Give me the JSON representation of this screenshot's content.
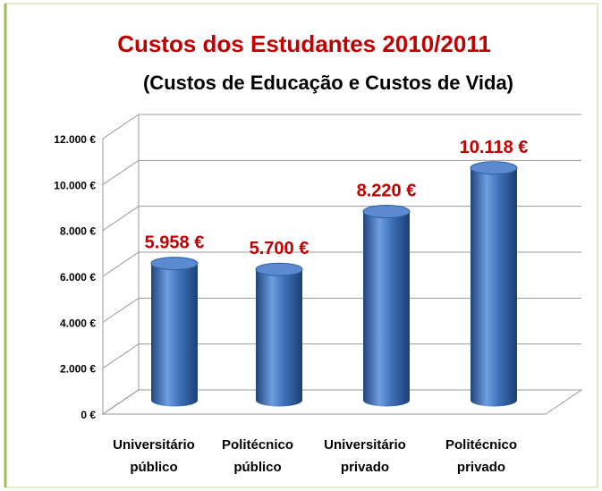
{
  "chart_data": {
    "type": "bar3d",
    "title": "Custos dos Estudantes 2010/2011",
    "subtitle": "(Custos de Educação e Custos de Vida)",
    "categories": [
      "Universitário público",
      "Politécnico público",
      "Universitário privado",
      "Politécnico privado"
    ],
    "values": [
      5958,
      5700,
      8220,
      10118
    ],
    "value_labels": [
      "5.958 €",
      "5.700 €",
      "8.220 €",
      "10.118 €"
    ],
    "color": "#3a6fb8",
    "label_color": "#c00000",
    "ylim": [
      0,
      12000
    ],
    "yticks": [
      {
        "value": 0,
        "label": "0 €"
      },
      {
        "value": 2000,
        "label": "2.000 €"
      },
      {
        "value": 4000,
        "label": "4.000 €"
      },
      {
        "value": 6000,
        "label": "6.000 €"
      },
      {
        "value": 8000,
        "label": "8.000 €"
      },
      {
        "value": 10000,
        "label": "10.000 €"
      },
      {
        "value": 12000,
        "label": "12.000 €"
      }
    ],
    "grid": true
  }
}
